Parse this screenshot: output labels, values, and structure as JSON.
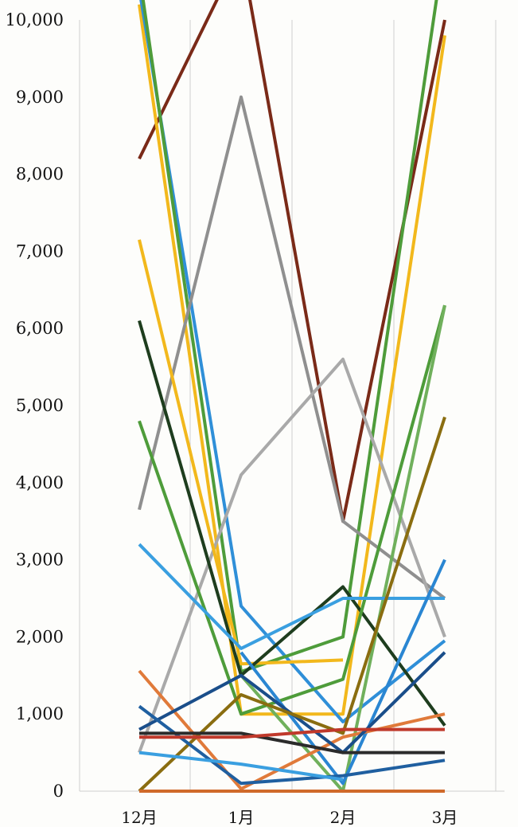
{
  "chart_data": {
    "type": "line",
    "title": "",
    "xlabel": "",
    "ylabel": "",
    "categories": [
      "12月",
      "1月",
      "2月",
      "3月"
    ],
    "ylim": [
      0,
      10000
    ],
    "yticks": [
      "0",
      "1,000",
      "2,000",
      "3,000",
      "4,000",
      "5,000",
      "6,000",
      "7,000",
      "8,000",
      "9,000",
      "10,000"
    ],
    "grid": "vertical",
    "legend": "none",
    "series": [
      {
        "color": "#7a2a18",
        "values": [
          8200,
          10900,
          3500,
          10000
        ]
      },
      {
        "color": "#f2b81c",
        "values": [
          10200,
          1000,
          1000,
          9800
        ]
      },
      {
        "color": "#2f8fd8",
        "values": [
          10400,
          2400,
          900,
          1950
        ]
      },
      {
        "color": "#4e9c3a",
        "values": [
          10600,
          1550,
          2000,
          11000
        ]
      },
      {
        "color": "#8f8f8f",
        "values": [
          3650,
          9000,
          3500,
          2500
        ]
      },
      {
        "color": "#a9a9a9",
        "values": [
          500,
          4100,
          5600,
          2000
        ]
      },
      {
        "color": "#f2b81c",
        "values": [
          7150,
          1650,
          1700,
          null
        ]
      },
      {
        "color": "#1e3d1e",
        "values": [
          6100,
          1500,
          2650,
          850
        ]
      },
      {
        "color": "#4e9c3a",
        "values": [
          4800,
          1000,
          1450,
          6300
        ]
      },
      {
        "color": "#70b05c",
        "values": [
          null,
          1500,
          0,
          6300
        ]
      },
      {
        "color": "#3a9fe0",
        "values": [
          3200,
          1850,
          2500,
          2500
        ]
      },
      {
        "color": "#2a86d2",
        "values": [
          null,
          1800,
          100,
          3000
        ]
      },
      {
        "color": "#e07a3a",
        "values": [
          1560,
          30,
          700,
          1000
        ]
      },
      {
        "color": "#1a4e8a",
        "values": [
          800,
          1500,
          500,
          1800
        ]
      },
      {
        "color": "#8a6d10",
        "values": [
          0,
          1250,
          750,
          4850
        ]
      },
      {
        "color": "#1f5fa0",
        "values": [
          1100,
          100,
          200,
          400
        ]
      },
      {
        "color": "#2b2b2b",
        "values": [
          750,
          750,
          500,
          500
        ]
      },
      {
        "color": "#c0392b",
        "values": [
          700,
          700,
          800,
          800
        ]
      },
      {
        "color": "#3a9fe0",
        "values": [
          500,
          350,
          150,
          null
        ]
      },
      {
        "color": "#d06a2a",
        "values": [
          0,
          0,
          0,
          0
        ]
      }
    ]
  }
}
